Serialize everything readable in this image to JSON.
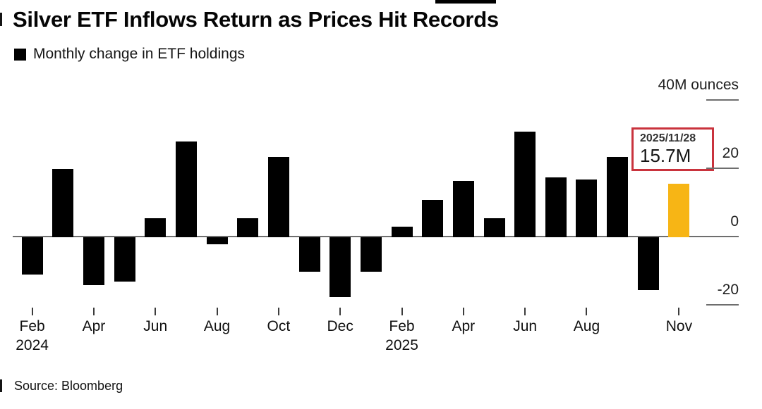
{
  "title": "Silver ETF Inflows Return as Prices Hit Records",
  "legend": {
    "label": "Monthly change in ETF holdings",
    "swatch_color": "#000000"
  },
  "source": "Source: Bloomberg",
  "annotation": {
    "date": "2025/11/28",
    "value": "15.7M",
    "border_color": "#c9333d"
  },
  "y_axis": {
    "ticks": [
      {
        "label": "40M ounces",
        "value": 40
      },
      {
        "label": "20",
        "value": 20
      },
      {
        "label": "0",
        "value": 0
      },
      {
        "label": "-20",
        "value": -20
      }
    ]
  },
  "x_axis": {
    "ticks": [
      {
        "label": "Feb",
        "year": "2024",
        "month_index": 0
      },
      {
        "label": "Apr",
        "month_index": 2
      },
      {
        "label": "Jun",
        "month_index": 4
      },
      {
        "label": "Aug",
        "month_index": 6
      },
      {
        "label": "Oct",
        "month_index": 8
      },
      {
        "label": "Dec",
        "month_index": 10
      },
      {
        "label": "Feb",
        "year": "2025",
        "month_index": 12
      },
      {
        "label": "Apr",
        "month_index": 14
      },
      {
        "label": "Jun",
        "month_index": 16
      },
      {
        "label": "Aug",
        "month_index": 18
      },
      {
        "label": "Nov",
        "month_index": 21
      }
    ]
  },
  "chart_data": {
    "type": "bar",
    "title": "Silver ETF Inflows Return as Prices Hit Records",
    "series_label": "Monthly change in ETF holdings",
    "unit": "million ounces",
    "ylabel": "40M ounces",
    "ylim": [
      -25,
      40
    ],
    "grid": "none",
    "legend_position": "top-left",
    "categories": [
      "Feb 2024",
      "Mar 2024",
      "Apr 2024",
      "May 2024",
      "Jun 2024",
      "Jul 2024",
      "Aug 2024",
      "Sep 2024",
      "Oct 2024",
      "Nov 2024",
      "Dec 2024",
      "Jan 2025",
      "Feb 2025",
      "Mar 2025",
      "Apr 2025",
      "May 2025",
      "Jun 2025",
      "Jul 2025",
      "Aug 2025",
      "Sep 2025",
      "Oct 2025",
      "Nov 2025"
    ],
    "values": [
      -11,
      20,
      -14,
      -13,
      5.5,
      28,
      -2,
      5.5,
      23.5,
      -10,
      -17.5,
      -10,
      3,
      11,
      16.5,
      5.5,
      31,
      17.5,
      17,
      23.5,
      -15.5,
      15.7
    ],
    "bar_color": "#000000",
    "highlight": {
      "index": 21,
      "color": "#f7b515",
      "annotated_date": "2025/11/28",
      "annotated_value": "15.7M"
    }
  }
}
